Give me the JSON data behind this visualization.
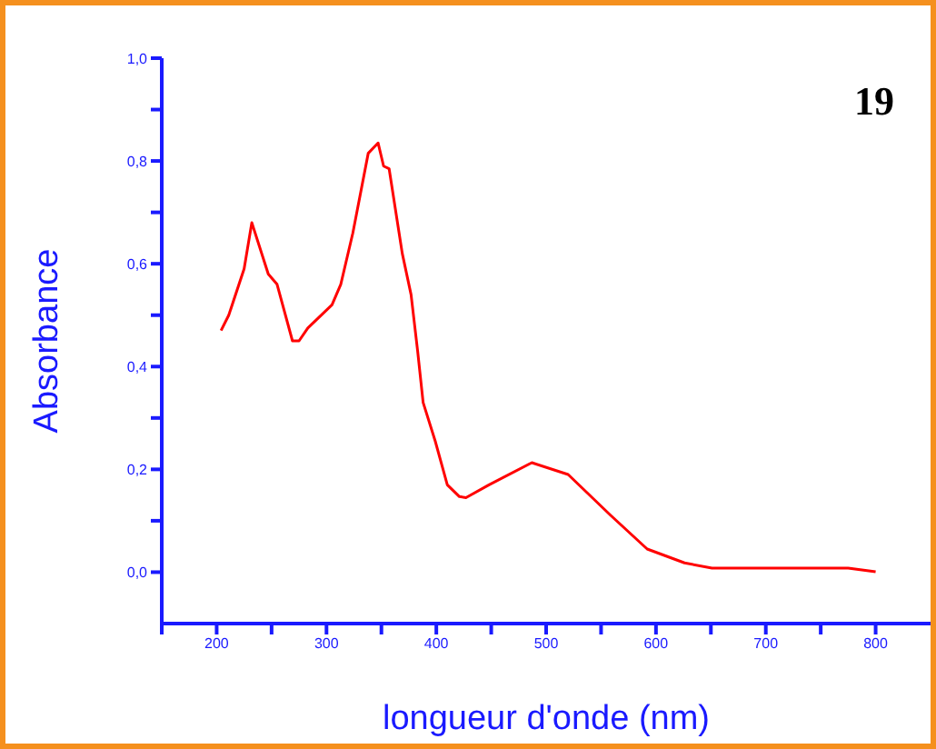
{
  "chart_data": {
    "type": "line",
    "xlabel": "longueur d'onde (nm)",
    "ylabel": "Absorbance",
    "annotations": [
      "19"
    ],
    "series": [
      {
        "color": "#ff0000",
        "x": [
          204,
          211,
          225,
          232,
          247,
          255,
          269,
          275,
          283,
          305,
          313,
          324,
          338,
          347,
          352,
          357,
          369,
          377,
          383,
          388,
          399,
          410,
          421,
          427,
          448,
          487,
          520,
          559,
          592,
          626,
          651,
          775,
          800
        ],
        "values": [
          0.47,
          0.5,
          0.59,
          0.68,
          0.58,
          0.56,
          0.45,
          0.45,
          0.475,
          0.52,
          0.56,
          0.66,
          0.815,
          0.835,
          0.79,
          0.785,
          0.62,
          0.54,
          0.43,
          0.33,
          0.255,
          0.17,
          0.147,
          0.145,
          0.17,
          0.213,
          0.19,
          0.11,
          0.045,
          0.018,
          0.008,
          0.008,
          0.001
        ]
      }
    ],
    "xlim": [
      150,
      850
    ],
    "xticks": [
      {
        "value": 150,
        "label": null
      },
      200,
      {
        "value": 250,
        "label": null
      },
      300,
      {
        "value": 350,
        "label": null
      },
      400,
      {
        "value": 450,
        "label": null
      },
      500,
      {
        "value": 550,
        "label": null
      },
      600,
      {
        "value": 650,
        "label": null
      },
      700,
      {
        "value": 750,
        "label": null
      },
      800
    ],
    "ylim": [
      -0.1,
      1.0
    ],
    "yticks": [
      {
        "value": 0,
        "label": "0,0"
      },
      {
        "value": 0.1,
        "label": null
      },
      {
        "value": 0.2,
        "label": "0,2"
      },
      {
        "value": 0.3,
        "label": null
      },
      {
        "value": 0.4,
        "label": "0,4"
      },
      {
        "value": 0.5,
        "label": null
      },
      {
        "value": 0.6,
        "label": "0,6"
      },
      {
        "value": 0.7,
        "label": null
      },
      {
        "value": 0.8,
        "label": "0,8"
      },
      {
        "value": 0.9,
        "label": null
      },
      {
        "value": 1.0,
        "label": "1,0"
      }
    ],
    "grid": false,
    "legend": false,
    "marker": "none",
    "line_style": "solid"
  }
}
